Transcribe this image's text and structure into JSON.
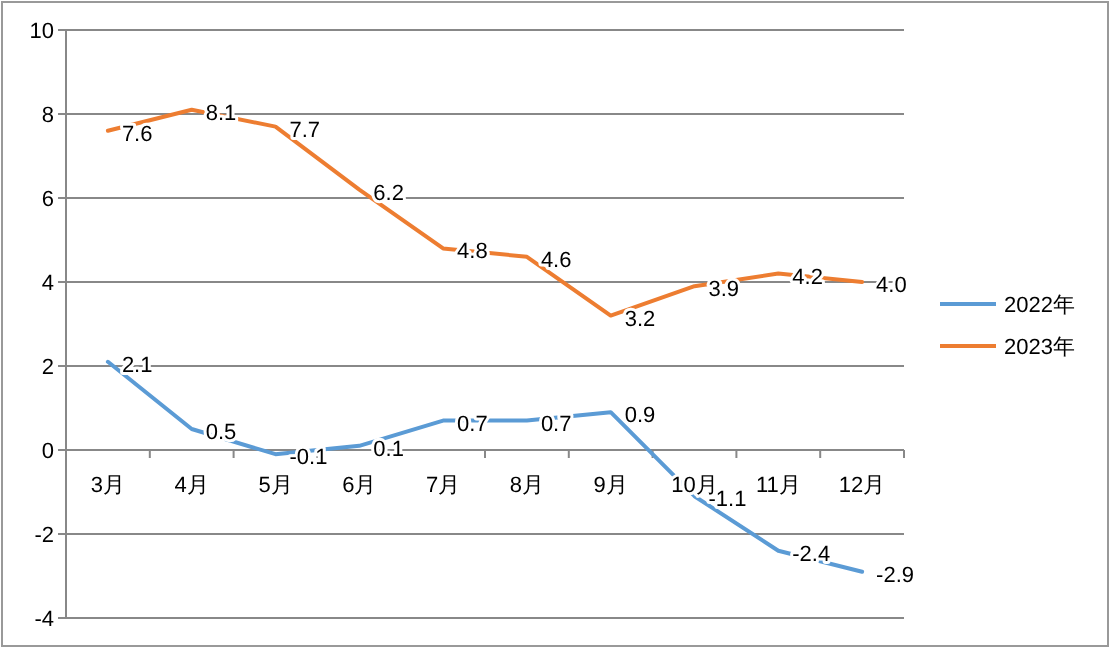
{
  "chart_data": {
    "type": "line",
    "categories": [
      "3月",
      "4月",
      "5月",
      "6月",
      "7月",
      "8月",
      "9月",
      "10月",
      "11月",
      "12月"
    ],
    "series": [
      {
        "name": "2022年",
        "color": "#5b9bd5",
        "values": [
          2.1,
          0.5,
          -0.1,
          0.1,
          0.7,
          0.7,
          0.9,
          -1.1,
          -2.4,
          -2.9
        ],
        "value_labels": [
          "2.1",
          "0.5",
          "-0.1",
          "0.1",
          "0.7",
          "0.7",
          "0.9",
          "-1.1",
          "-2.4",
          "-2.9"
        ]
      },
      {
        "name": "2023年",
        "color": "#ed7d31",
        "values": [
          7.6,
          8.1,
          7.7,
          6.2,
          4.8,
          4.6,
          3.2,
          3.9,
          4.2,
          4.0
        ],
        "value_labels": [
          "7.6",
          "8.1",
          "7.7",
          "6.2",
          "4.8",
          "4.6",
          "3.2",
          "3.9",
          "4.2",
          "4.0"
        ]
      }
    ],
    "ylim": [
      -4,
      10
    ],
    "yticks": [
      -4,
      -2,
      0,
      2,
      4,
      6,
      8,
      10
    ],
    "grid": "y",
    "legend": "right",
    "marker": "none"
  }
}
